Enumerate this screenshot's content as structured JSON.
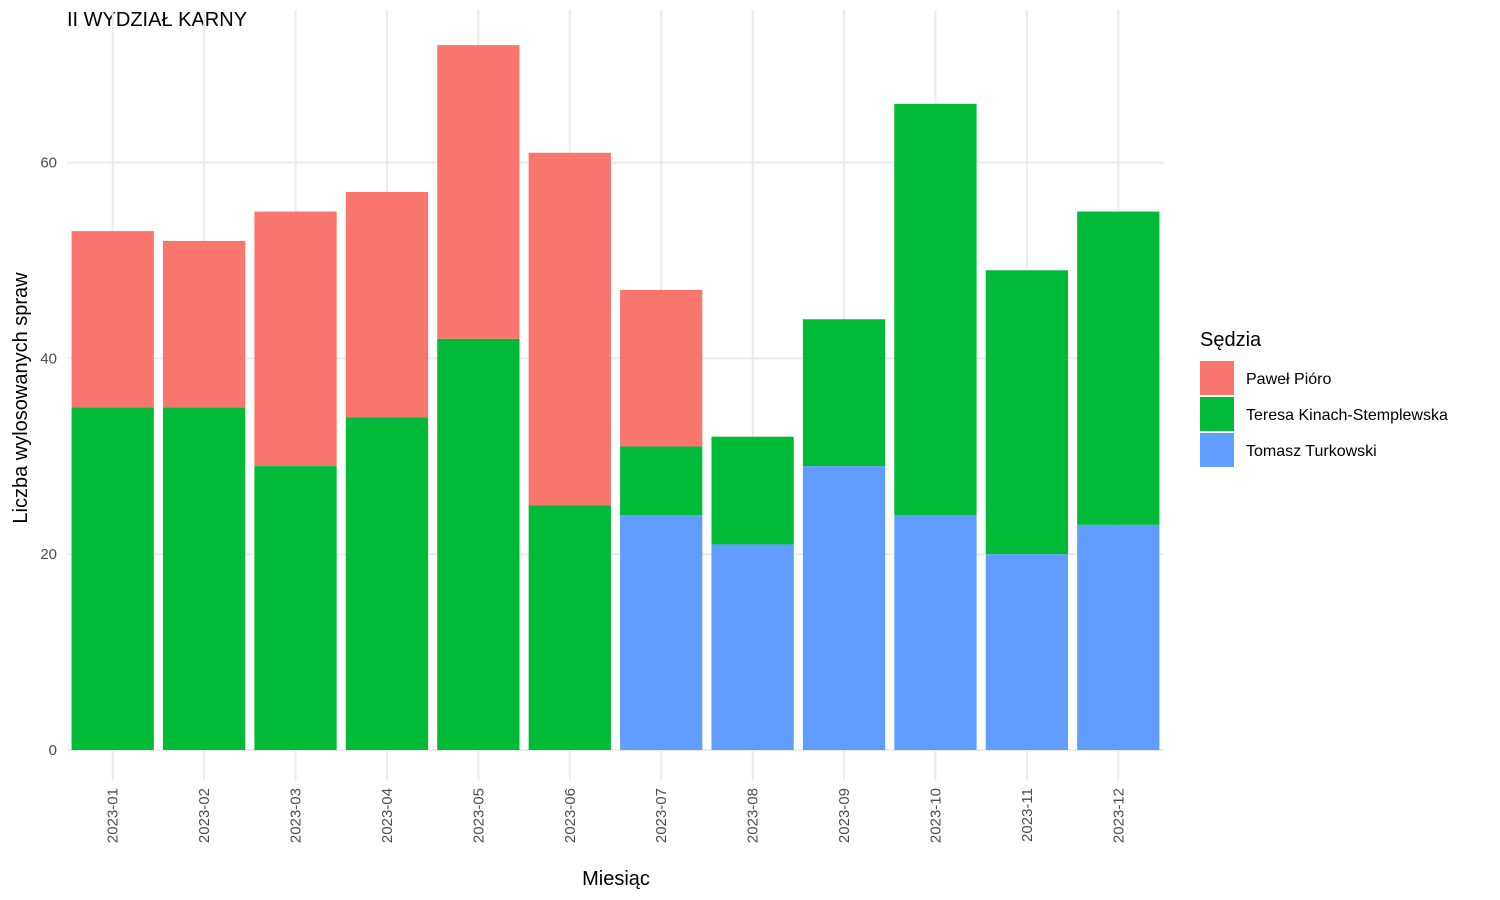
{
  "chart_data": {
    "type": "bar",
    "stacked": true,
    "title": "II WYDZIAŁ KARNY",
    "xlabel": "Miesiąc",
    "ylabel": "Liczba wylosowanych spraw",
    "ylim": [
      0,
      75
    ],
    "yticks": [
      0,
      20,
      40,
      60
    ],
    "grid": true,
    "legend_position": "right",
    "legend_title": "Sędzia",
    "categories": [
      "2023-01",
      "2023-02",
      "2023-03",
      "2023-04",
      "2023-05",
      "2023-06",
      "2023-07",
      "2023-08",
      "2023-09",
      "2023-10",
      "2023-11",
      "2023-12"
    ],
    "series": [
      {
        "name": "Tomasz Turkowski",
        "color": "#619CFF",
        "values": [
          0,
          0,
          0,
          0,
          0,
          0,
          24,
          21,
          29,
          24,
          20,
          23
        ]
      },
      {
        "name": "Teresa Kinach-Stemplewska",
        "color": "#00BA38",
        "values": [
          35,
          35,
          29,
          34,
          42,
          25,
          7,
          11,
          15,
          42,
          29,
          32
        ]
      },
      {
        "name": "Paweł Pióro",
        "color": "#F8766D",
        "values": [
          18,
          17,
          26,
          23,
          30,
          36,
          16,
          0,
          0,
          0,
          0,
          0
        ]
      }
    ],
    "legend_order": [
      "Paweł Pióro",
      "Teresa Kinach-Stemplewska",
      "Tomasz Turkowski"
    ]
  }
}
